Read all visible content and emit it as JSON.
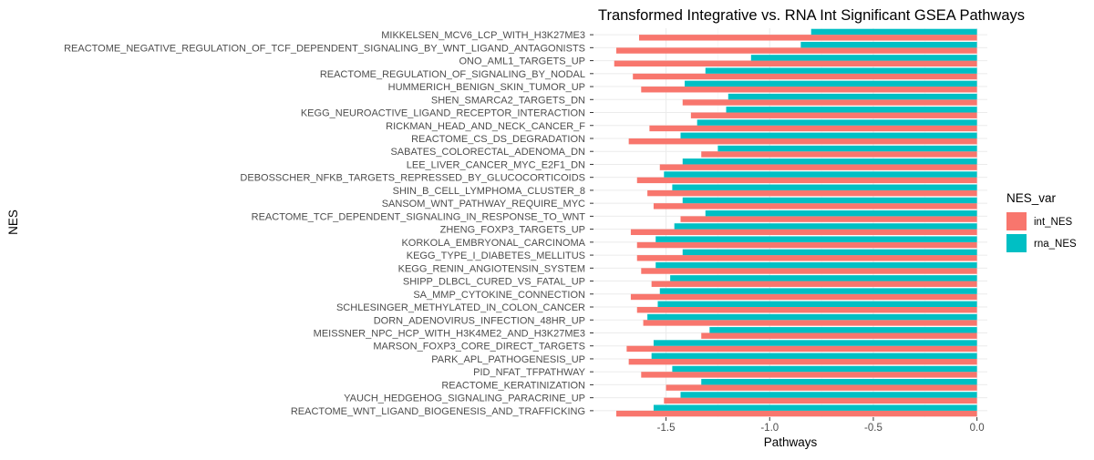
{
  "chart_data": {
    "type": "bar",
    "orientation": "horizontal",
    "title": "Transformed Integrative vs. RNA Int Significant GSEA Pathways",
    "xlabel": "Pathways",
    "ylabel": "NES",
    "xlim": [
      -1.85,
      0.05
    ],
    "x_ticks": [
      -1.5,
      -1.0,
      -0.5,
      0.0
    ],
    "x_tick_labels": [
      "-1.5",
      "-1.0",
      "-0.5",
      "0.0"
    ],
    "grid": true,
    "legend": {
      "title": "NES_var",
      "placement": "right"
    },
    "categories": [
      "MIKKELSEN_MCV6_LCP_WITH_H3K27ME3",
      "REACTOME_NEGATIVE_REGULATION_OF_TCF_DEPENDENT_SIGNALING_BY_WNT_LIGAND_ANTAGONISTS",
      "ONO_AML1_TARGETS_UP",
      "REACTOME_REGULATION_OF_SIGNALING_BY_NODAL",
      "HUMMERICH_BENIGN_SKIN_TUMOR_UP",
      "SHEN_SMARCA2_TARGETS_DN",
      "KEGG_NEUROACTIVE_LIGAND_RECEPTOR_INTERACTION",
      "RICKMAN_HEAD_AND_NECK_CANCER_F",
      "REACTOME_CS_DS_DEGRADATION",
      "SABATES_COLORECTAL_ADENOMA_DN",
      "LEE_LIVER_CANCER_MYC_E2F1_DN",
      "DEBOSSCHER_NFKB_TARGETS_REPRESSED_BY_GLUCOCORTICOIDS",
      "SHIN_B_CELL_LYMPHOMA_CLUSTER_8",
      "SANSOM_WNT_PATHWAY_REQUIRE_MYC",
      "REACTOME_TCF_DEPENDENT_SIGNALING_IN_RESPONSE_TO_WNT",
      "ZHENG_FOXP3_TARGETS_UP",
      "KORKOLA_EMBRYONAL_CARCINOMA",
      "KEGG_TYPE_I_DIABETES_MELLITUS",
      "KEGG_RENIN_ANGIOTENSIN_SYSTEM",
      "SHIPP_DLBCL_CURED_VS_FATAL_UP",
      "SA_MMP_CYTOKINE_CONNECTION",
      "SCHLESINGER_METHYLATED_IN_COLON_CANCER",
      "DORN_ADENOVIRUS_INFECTION_48HR_UP",
      "MEISSNER_NPC_HCP_WITH_H3K4ME2_AND_H3K27ME3",
      "MARSON_FOXP3_CORE_DIRECT_TARGETS",
      "PARK_APL_PATHOGENESIS_UP",
      "PID_NFAT_TFPATHWAY",
      "REACTOME_KERATINIZATION",
      "YAUCH_HEDGEHOG_SIGNALING_PARACRINE_UP",
      "REACTOME_WNT_LIGAND_BIOGENESIS_AND_TRAFFICKING"
    ],
    "series": [
      {
        "name": "int_NES",
        "color": "#F8766D",
        "values": [
          -1.63,
          -1.74,
          -1.75,
          -1.66,
          -1.62,
          -1.42,
          -1.38,
          -1.58,
          -1.68,
          -1.33,
          -1.53,
          -1.64,
          -1.59,
          -1.56,
          -1.43,
          -1.67,
          -1.64,
          -1.64,
          -1.62,
          -1.57,
          -1.67,
          -1.64,
          -1.61,
          -1.33,
          -1.69,
          -1.68,
          -1.62,
          -1.5,
          -1.51,
          -1.74
        ]
      },
      {
        "name": "rna_NES",
        "color": "#00BFC4",
        "values": [
          -0.8,
          -0.85,
          -1.09,
          -1.31,
          -1.41,
          -1.2,
          -1.21,
          -1.35,
          -1.43,
          -1.25,
          -1.42,
          -1.51,
          -1.47,
          -1.42,
          -1.31,
          -1.46,
          -1.55,
          -1.42,
          -1.55,
          -1.48,
          -1.53,
          -1.54,
          -1.59,
          -1.29,
          -1.56,
          -1.57,
          -1.47,
          -1.33,
          -1.43,
          -1.56
        ]
      }
    ]
  }
}
